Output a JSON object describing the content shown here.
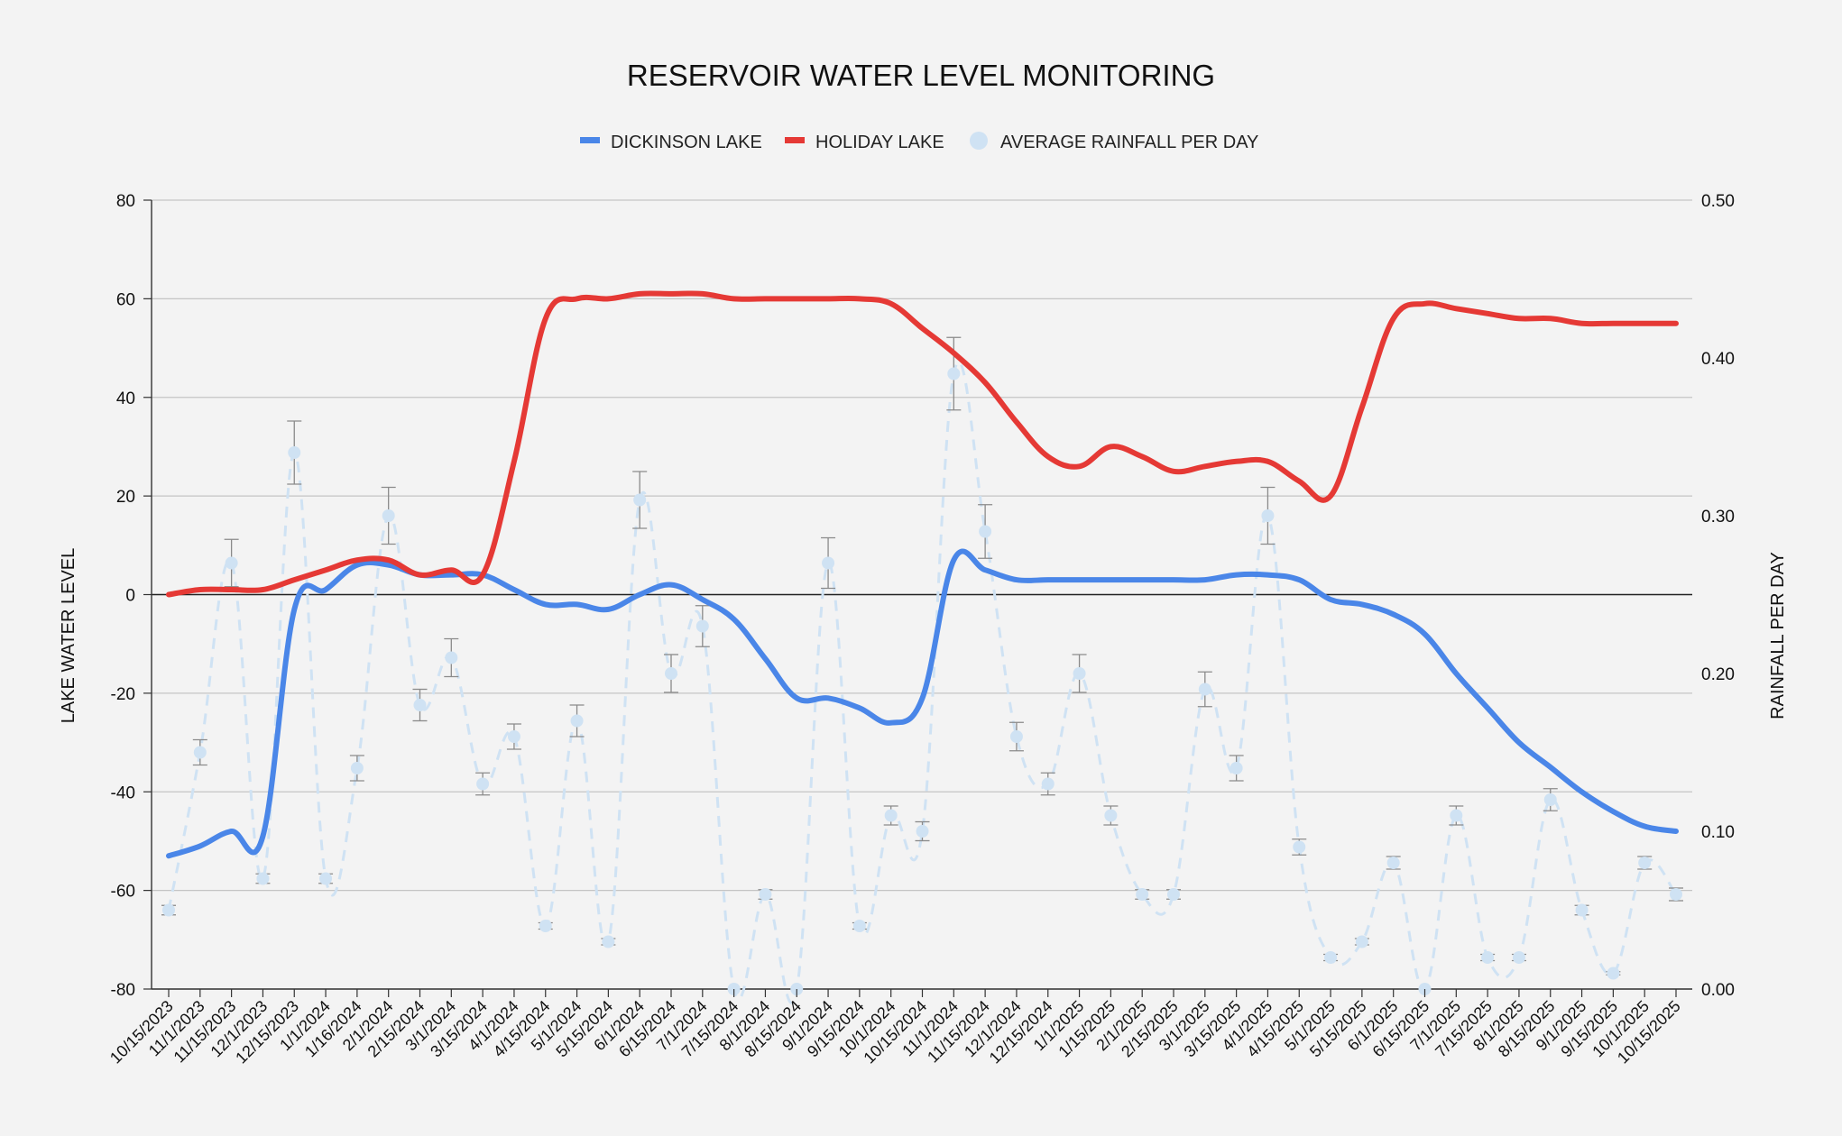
{
  "chart_data": {
    "type": "line",
    "title": "RESERVOIR WATER LEVEL MONITORING",
    "ylabel_left": "LAKE WATER LEVEL",
    "ylabel_right": "RAINFALL PER DAY",
    "xlabel": "",
    "ylim_left": [
      -80,
      80
    ],
    "ylim_right": [
      0.0,
      0.5
    ],
    "yticks_left": [
      "80",
      "60",
      "40",
      "20",
      "0",
      "-20",
      "-40",
      "-60",
      "-80"
    ],
    "yticks_right": [
      "0.50",
      "0.40",
      "0.30",
      "0.20",
      "0.10",
      "0.00"
    ],
    "grid": true,
    "legend_position": "top-center",
    "categories": [
      "10/15/2023",
      "11/1/2023",
      "11/15/2023",
      "12/1/2023",
      "12/15/2023",
      "1/1/2024",
      "1/16/2024",
      "2/1/2024",
      "2/15/2024",
      "3/1/2024",
      "3/15/2024",
      "4/1/2024",
      "4/15/2024",
      "5/1/2024",
      "5/15/2024",
      "6/1/2024",
      "6/15/2024",
      "7/1/2024",
      "7/15/2024",
      "8/1/2024",
      "8/15/2024",
      "9/1/2024",
      "9/15/2024",
      "10/1/2024",
      "10/15/2024",
      "11/1/2024",
      "11/15/2024",
      "12/1/2024",
      "12/15/2024",
      "1/1/2025",
      "1/15/2025",
      "2/1/2025",
      "2/15/2025",
      "3/1/2025",
      "3/15/2025",
      "4/1/2025",
      "4/15/2025",
      "5/1/2025",
      "5/15/2025",
      "6/1/2025",
      "6/15/2025",
      "7/1/2025",
      "7/15/2025",
      "8/1/2025",
      "8/15/2025",
      "9/1/2025",
      "9/15/2025",
      "10/1/2025",
      "10/15/2025"
    ],
    "series": [
      {
        "name": "DICKINSON LAKE",
        "axis": "left",
        "color": "#4a86e8",
        "values": [
          -53,
          -51,
          -48,
          -49,
          -3,
          1,
          6,
          6,
          4,
          4,
          4,
          1,
          -2,
          -2,
          -3,
          0,
          2,
          -1,
          -5,
          -13,
          -21,
          -21,
          -23,
          -26,
          -21,
          7,
          5,
          3,
          3,
          3,
          3,
          3,
          3,
          3,
          4,
          4,
          3,
          -1,
          -2,
          -4,
          -8,
          -16,
          -23,
          -30,
          -35,
          -40,
          -44,
          -47,
          -48
        ]
      },
      {
        "name": "HOLIDAY LAKE",
        "axis": "left",
        "color": "#e53935",
        "values": [
          0,
          1,
          1,
          1,
          3,
          5,
          7,
          7,
          4,
          5,
          4,
          27,
          56,
          60,
          60,
          61,
          61,
          61,
          60,
          60,
          60,
          60,
          60,
          59,
          54,
          49,
          43,
          35,
          28,
          26,
          30,
          28,
          25,
          26,
          27,
          27,
          23,
          20,
          38,
          56,
          59,
          58,
          57,
          56,
          56,
          55,
          55,
          55,
          55
        ]
      },
      {
        "name": "AVERAGE RAINFALL PER DAY",
        "axis": "right",
        "color": "#cfe2f3",
        "values": [
          0.05,
          0.15,
          0.27,
          0.07,
          0.34,
          0.07,
          0.14,
          0.3,
          0.18,
          0.21,
          0.13,
          0.16,
          0.04,
          0.17,
          0.03,
          0.31,
          0.2,
          0.23,
          0.0,
          0.06,
          0.0,
          0.27,
          0.04,
          0.11,
          0.1,
          0.39,
          0.29,
          0.16,
          0.13,
          0.2,
          0.11,
          0.06,
          0.06,
          0.19,
          0.14,
          0.3,
          0.09,
          0.02,
          0.03,
          0.08,
          0.0,
          0.11,
          0.02,
          0.02,
          0.12,
          0.05,
          0.01,
          0.08,
          0.06
        ],
        "errors": [
          0.003,
          0.008,
          0.015,
          0.003,
          0.02,
          0.003,
          0.008,
          0.018,
          0.01,
          0.012,
          0.007,
          0.008,
          0.002,
          0.01,
          0.002,
          0.018,
          0.012,
          0.013,
          0.0,
          0.003,
          0.0,
          0.016,
          0.002,
          0.006,
          0.006,
          0.023,
          0.017,
          0.009,
          0.007,
          0.012,
          0.006,
          0.003,
          0.003,
          0.011,
          0.008,
          0.018,
          0.005,
          0.002,
          0.002,
          0.004,
          0.0,
          0.006,
          0.002,
          0.002,
          0.007,
          0.003,
          0.001,
          0.004,
          0.004
        ]
      }
    ]
  }
}
